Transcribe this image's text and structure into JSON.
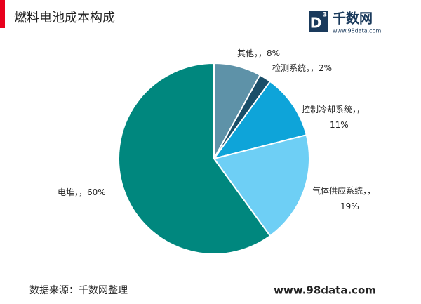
{
  "chart_data": {
    "type": "pie",
    "title": "燃料电池成本构成",
    "categories": [
      "其他",
      "检测系统",
      "控制冷却系统",
      "气体供应系统",
      "电堆"
    ],
    "values": [
      8,
      2,
      11,
      19,
      60
    ],
    "value_labels": [
      "8%",
      "2%",
      "11%",
      "19%",
      "60%"
    ],
    "label_separator": "，，",
    "colors": [
      "#5e92a8",
      "#1a4e68",
      "#0ea4d9",
      "#6ecff5",
      "#00877e"
    ]
  },
  "header": {
    "logo_mark": "D",
    "logo_sup": "3",
    "logo_text": "千数网",
    "logo_url": "www.98data.com"
  },
  "footer": {
    "source": "数据来源：千数网整理",
    "url": "www.98data.com"
  }
}
